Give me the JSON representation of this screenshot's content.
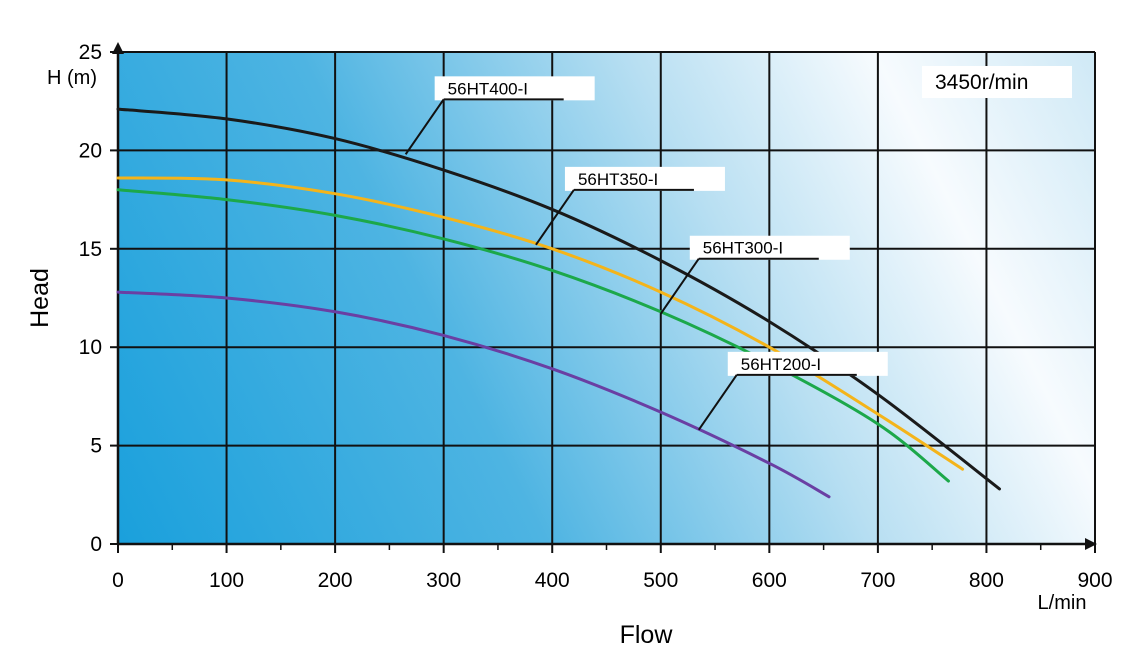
{
  "chart_data": {
    "type": "line",
    "xlabel": "Flow",
    "ylabel": "Head",
    "x_unit": "L/min",
    "y_unit": "H (m)",
    "xlim": [
      0,
      900
    ],
    "ylim": [
      0,
      25
    ],
    "x_ticks": [
      "0",
      "100",
      "200",
      "300",
      "400",
      "500",
      "600",
      "700",
      "800",
      "900"
    ],
    "y_ticks": [
      "0",
      "5",
      "10",
      "15",
      "20",
      "25"
    ],
    "grid": true,
    "annotation": "3450r/min",
    "series": [
      {
        "name": "56HT400-I",
        "color": "#1a1a1a",
        "x": [
          0,
          100,
          200,
          300,
          400,
          500,
          600,
          700,
          812
        ],
        "y": [
          22.1,
          21.6,
          20.6,
          19.0,
          17.0,
          14.4,
          11.3,
          7.6,
          2.8
        ]
      },
      {
        "name": "56HT350-I",
        "color": "#f4b41a",
        "x": [
          0,
          100,
          200,
          300,
          400,
          500,
          600,
          700,
          778
        ],
        "y": [
          18.6,
          18.5,
          17.8,
          16.6,
          15.0,
          12.8,
          10.0,
          6.6,
          3.8
        ]
      },
      {
        "name": "56HT300-I",
        "color": "#1ca84a",
        "x": [
          0,
          100,
          200,
          300,
          400,
          500,
          600,
          700,
          765
        ],
        "y": [
          18.0,
          17.5,
          16.7,
          15.5,
          13.9,
          11.8,
          9.2,
          6.1,
          3.2
        ]
      },
      {
        "name": "56HT200-I",
        "color": "#6a3fa3",
        "x": [
          0,
          100,
          200,
          300,
          400,
          500,
          600,
          655
        ],
        "y": [
          12.8,
          12.5,
          11.8,
          10.6,
          8.9,
          6.7,
          4.1,
          2.4
        ]
      }
    ],
    "callouts": [
      {
        "series": "56HT400-I",
        "point_x": 265,
        "point_y": 19.8
      },
      {
        "series": "56HT350-I",
        "point_x": 385,
        "point_y": 15.2
      },
      {
        "series": "56HT300-I",
        "point_x": 500,
        "point_y": 11.7
      },
      {
        "series": "56HT200-I",
        "point_x": 535,
        "point_y": 5.8
      }
    ]
  }
}
